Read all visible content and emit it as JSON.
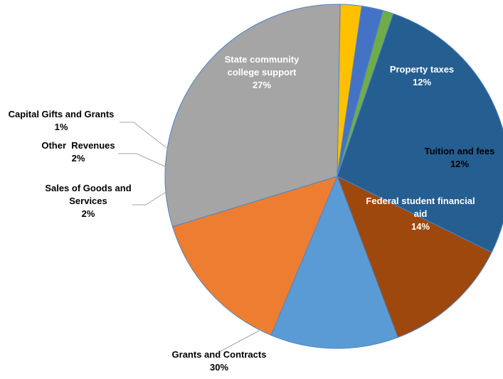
{
  "chart_data": {
    "type": "pie",
    "title": "",
    "slices": [
      {
        "lines": [
          "State community",
          "college support",
          "27%"
        ],
        "label": "State community college support",
        "percent_label": "27%",
        "value": 27,
        "color": "#255E91"
      },
      {
        "lines": [
          "Property taxes",
          "12%"
        ],
        "label": "Property taxes",
        "percent_label": "12%",
        "value": 12,
        "color": "#9E480E"
      },
      {
        "lines": [
          "Tuition and fees",
          "12%"
        ],
        "label": "Tuition and fees",
        "percent_label": "12%",
        "value": 12,
        "color": "#5B9BD5"
      },
      {
        "lines": [
          "Federal student financial",
          "aid",
          "14%"
        ],
        "label": "Federal student financial aid",
        "percent_label": "14%",
        "value": 14,
        "color": "#ED7D31"
      },
      {
        "lines": [
          "Grants and Contracts",
          "30%"
        ],
        "label": "Grants and Contracts",
        "percent_label": "30%",
        "value": 30,
        "color": "#A5A5A5"
      },
      {
        "lines": [
          "Sales of Goods and",
          "Services",
          "2%"
        ],
        "label": "Sales of Goods and Services",
        "percent_label": "2%",
        "value": 2,
        "color": "#FFC000"
      },
      {
        "lines": [
          "Other  Revenues",
          "2%"
        ],
        "label": "Other Revenues",
        "percent_label": "2%",
        "value": 2,
        "color": "#4472C4"
      },
      {
        "lines": [
          "Capital Gifts and Grants",
          "1%"
        ],
        "label": "Capital Gifts and Grants",
        "percent_label": "1%",
        "value": 1,
        "color": "#70AD47"
      }
    ]
  }
}
